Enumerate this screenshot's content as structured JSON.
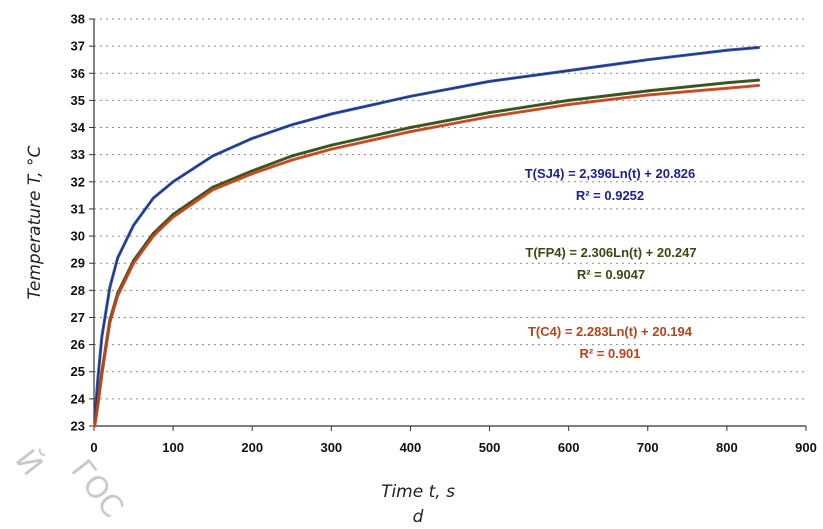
{
  "chart_data": {
    "type": "line",
    "title": "",
    "xlabel": "Time t, s",
    "ylabel": "Temperature T, °C",
    "panel_label": "d",
    "xlim": [
      0,
      900
    ],
    "ylim": [
      23,
      38
    ],
    "x_ticks": [
      0,
      100,
      200,
      300,
      400,
      500,
      600,
      700,
      800,
      900
    ],
    "y_ticks": [
      23,
      24,
      25,
      26,
      27,
      28,
      29,
      30,
      31,
      32,
      33,
      34,
      35,
      36,
      37,
      38
    ],
    "grid": "horizontal dotted",
    "x": [
      1,
      5,
      10,
      20,
      30,
      50,
      75,
      100,
      150,
      200,
      250,
      300,
      400,
      500,
      600,
      700,
      800,
      840
    ],
    "series": [
      {
        "id": "SJ4",
        "color": "#1f4e8c",
        "fit_color": "#1f1f8f",
        "values": [
          23.3,
          24.8,
          26.3,
          28.1,
          29.2,
          30.4,
          31.4,
          32.0,
          32.95,
          33.6,
          34.1,
          34.5,
          35.15,
          35.7,
          36.1,
          36.5,
          36.85,
          36.95
        ],
        "fit_equation": "T(SJ4) = 2,396Ln(t) + 20.826",
        "r_squared": "R² = 0.9252"
      },
      {
        "id": "FP4",
        "color": "#2f4f1a",
        "fit_color": "#3a4a10",
        "values": [
          23.1,
          23.9,
          25.0,
          26.9,
          27.9,
          29.1,
          30.1,
          30.8,
          31.8,
          32.4,
          32.95,
          33.35,
          34.0,
          34.55,
          35.0,
          35.35,
          35.65,
          35.75
        ],
        "fit_equation": "T(FP4) = 2.306Ln(t) + 20.247",
        "r_squared": "R² = 0.9047"
      },
      {
        "id": "C4",
        "color": "#c8471f",
        "fit_color": "#b0461a",
        "values": [
          23.0,
          23.8,
          24.9,
          26.8,
          27.8,
          29.0,
          30.0,
          30.7,
          31.7,
          32.3,
          32.8,
          33.2,
          33.85,
          34.4,
          34.85,
          35.2,
          35.45,
          35.55
        ],
        "fit_equation": "T(C4) = 2.283Ln(t) + 20.194",
        "r_squared": "R² = 0.901"
      }
    ]
  },
  "watermarks": [
    "Й",
    "ГОС"
  ]
}
